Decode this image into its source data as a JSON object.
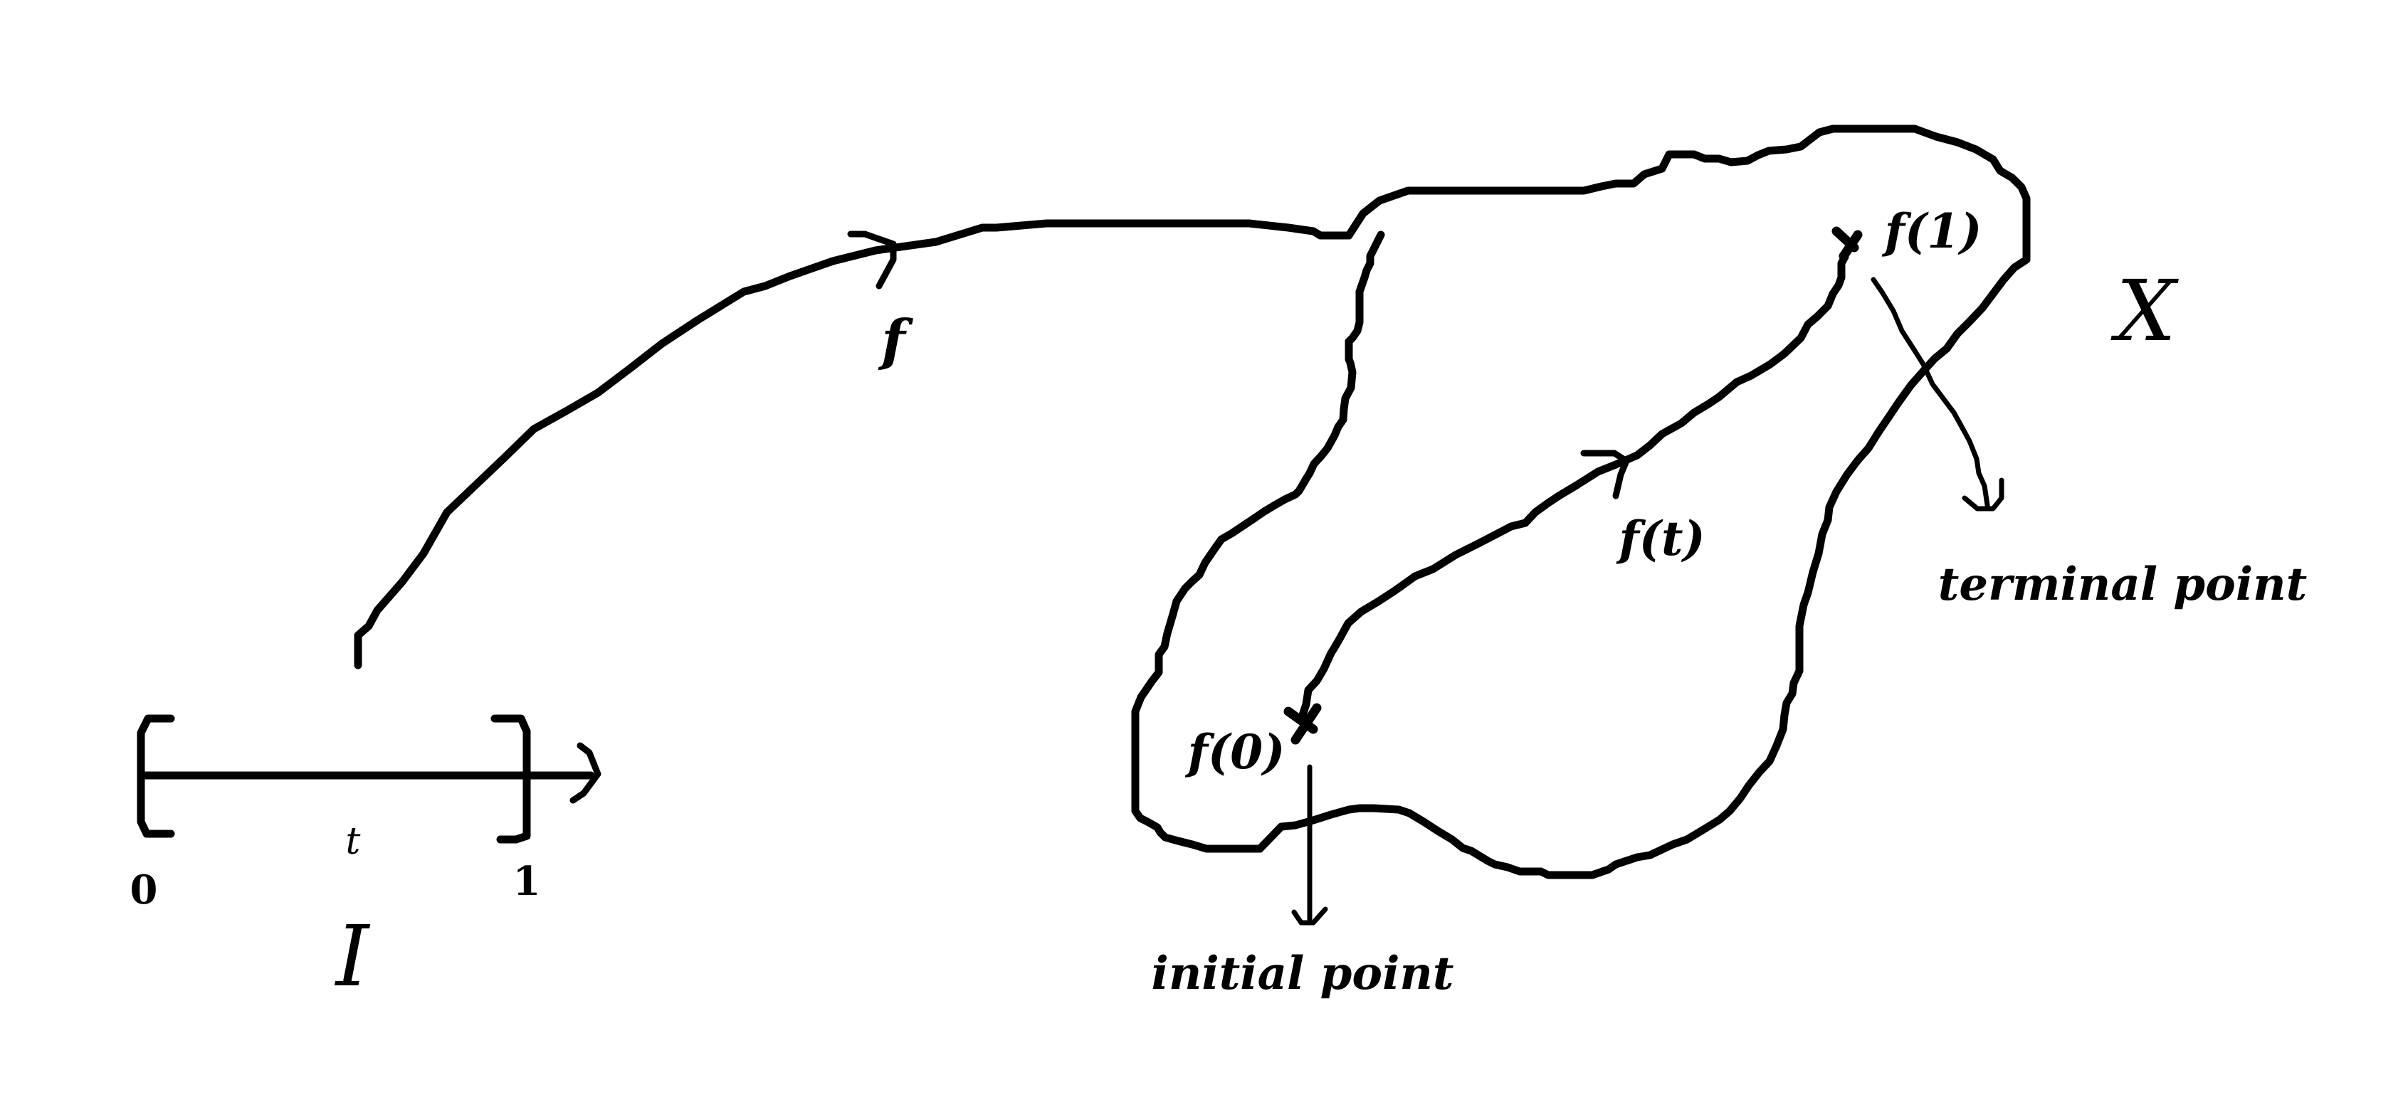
{
  "colors": {
    "ink": "#000000",
    "background": "#ffffff"
  },
  "interval": {
    "name": "I",
    "left_endpoint": "0",
    "right_endpoint": "1",
    "variable": "t"
  },
  "map_label": "f",
  "space_label": "X",
  "path_labels": {
    "start": "f(0)",
    "middle": "f(t)",
    "end": "f(1)"
  },
  "annotations": {
    "initial": "initial point",
    "terminal": "terminal point"
  }
}
